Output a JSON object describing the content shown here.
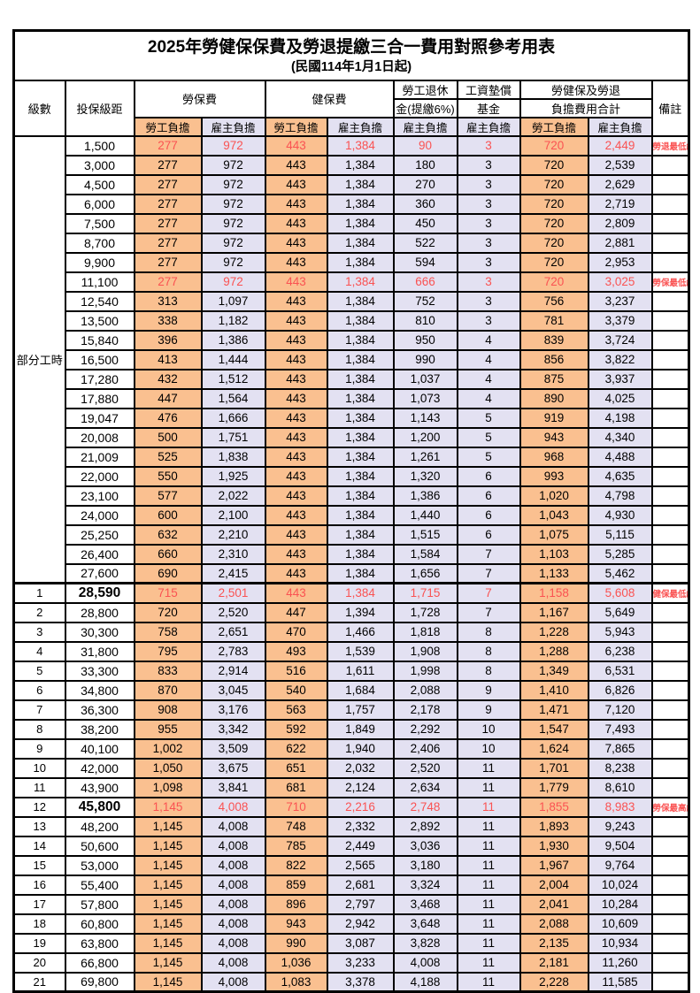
{
  "title": "2025年勞健保保費及勞退提繳三合一費用對照參考用表",
  "subtitle": "(民國114年1月1日起)",
  "colors": {
    "employee_bg": "#FAC090",
    "employer_bg": "#E3E1F2",
    "highlight_text": "#FA5252"
  },
  "header": {
    "level": "級數",
    "bracket": "投保級距",
    "labor_fee": "勞保費",
    "health_fee": "健保費",
    "pension_top": "勞工退休",
    "pension_bottom": "金(提繳6%)",
    "wage_fund_top": "工資墊償",
    "wage_fund_bottom": "基金",
    "total_top": "勞健保及勞退",
    "total_bottom": "負擔費用合計",
    "remark": "備註",
    "employee_share": "勞工負擔",
    "employer_share": "雇主負擔"
  },
  "table": {
    "rows": [
      {
        "lv": "部分工時",
        "span": 23,
        "br": "1,500",
        "v": [
          "277",
          "972",
          "443",
          "1,384",
          "90",
          "3",
          "720",
          "2,449"
        ],
        "rm": "勞退最低級距",
        "red": true
      },
      {
        "br": "3,000",
        "v": [
          "277",
          "972",
          "443",
          "1,384",
          "180",
          "3",
          "720",
          "2,539"
        ]
      },
      {
        "br": "4,500",
        "v": [
          "277",
          "972",
          "443",
          "1,384",
          "270",
          "3",
          "720",
          "2,629"
        ]
      },
      {
        "br": "6,000",
        "v": [
          "277",
          "972",
          "443",
          "1,384",
          "360",
          "3",
          "720",
          "2,719"
        ]
      },
      {
        "br": "7,500",
        "v": [
          "277",
          "972",
          "443",
          "1,384",
          "450",
          "3",
          "720",
          "2,809"
        ]
      },
      {
        "br": "8,700",
        "v": [
          "277",
          "972",
          "443",
          "1,384",
          "522",
          "3",
          "720",
          "2,881"
        ]
      },
      {
        "br": "9,900",
        "v": [
          "277",
          "972",
          "443",
          "1,384",
          "594",
          "3",
          "720",
          "2,953"
        ]
      },
      {
        "br": "11,100",
        "v": [
          "277",
          "972",
          "443",
          "1,384",
          "666",
          "3",
          "720",
          "3,025"
        ],
        "rm": "勞保最低級距",
        "red": true
      },
      {
        "br": "12,540",
        "v": [
          "313",
          "1,097",
          "443",
          "1,384",
          "752",
          "3",
          "756",
          "3,237"
        ]
      },
      {
        "br": "13,500",
        "v": [
          "338",
          "1,182",
          "443",
          "1,384",
          "810",
          "3",
          "781",
          "3,379"
        ]
      },
      {
        "br": "15,840",
        "v": [
          "396",
          "1,386",
          "443",
          "1,384",
          "950",
          "4",
          "839",
          "3,724"
        ]
      },
      {
        "br": "16,500",
        "v": [
          "413",
          "1,444",
          "443",
          "1,384",
          "990",
          "4",
          "856",
          "3,822"
        ]
      },
      {
        "br": "17,280",
        "v": [
          "432",
          "1,512",
          "443",
          "1,384",
          "1,037",
          "4",
          "875",
          "3,937"
        ]
      },
      {
        "br": "17,880",
        "v": [
          "447",
          "1,564",
          "443",
          "1,384",
          "1,073",
          "4",
          "890",
          "4,025"
        ]
      },
      {
        "br": "19,047",
        "v": [
          "476",
          "1,666",
          "443",
          "1,384",
          "1,143",
          "5",
          "919",
          "4,198"
        ]
      },
      {
        "br": "20,008",
        "v": [
          "500",
          "1,751",
          "443",
          "1,384",
          "1,200",
          "5",
          "943",
          "4,340"
        ]
      },
      {
        "br": "21,009",
        "v": [
          "525",
          "1,838",
          "443",
          "1,384",
          "1,261",
          "5",
          "968",
          "4,488"
        ]
      },
      {
        "br": "22,000",
        "v": [
          "550",
          "1,925",
          "443",
          "1,384",
          "1,320",
          "6",
          "993",
          "4,635"
        ]
      },
      {
        "br": "23,100",
        "v": [
          "577",
          "2,022",
          "443",
          "1,384",
          "1,386",
          "6",
          "1,020",
          "4,798"
        ]
      },
      {
        "br": "24,000",
        "v": [
          "600",
          "2,100",
          "443",
          "1,384",
          "1,440",
          "6",
          "1,043",
          "4,930"
        ]
      },
      {
        "br": "25,250",
        "v": [
          "632",
          "2,210",
          "443",
          "1,384",
          "1,515",
          "6",
          "1,075",
          "5,115"
        ]
      },
      {
        "br": "26,400",
        "v": [
          "660",
          "2,310",
          "443",
          "1,384",
          "1,584",
          "7",
          "1,103",
          "5,285"
        ]
      },
      {
        "br": "27,600",
        "v": [
          "690",
          "2,415",
          "443",
          "1,384",
          "1,656",
          "7",
          "1,133",
          "5,462"
        ]
      },
      {
        "lv": "1",
        "br": "28,590",
        "v": [
          "715",
          "2,501",
          "443",
          "1,384",
          "1,715",
          "7",
          "1,158",
          "5,608"
        ],
        "rm": "健保最低級距",
        "red": true,
        "bold": true,
        "thick": true
      },
      {
        "lv": "2",
        "br": "28,800",
        "v": [
          "720",
          "2,520",
          "447",
          "1,394",
          "1,728",
          "7",
          "1,167",
          "5,649"
        ]
      },
      {
        "lv": "3",
        "br": "30,300",
        "v": [
          "758",
          "2,651",
          "470",
          "1,466",
          "1,818",
          "8",
          "1,228",
          "5,943"
        ]
      },
      {
        "lv": "4",
        "br": "31,800",
        "v": [
          "795",
          "2,783",
          "493",
          "1,539",
          "1,908",
          "8",
          "1,288",
          "6,238"
        ]
      },
      {
        "lv": "5",
        "br": "33,300",
        "v": [
          "833",
          "2,914",
          "516",
          "1,611",
          "1,998",
          "8",
          "1,349",
          "6,531"
        ]
      },
      {
        "lv": "6",
        "br": "34,800",
        "v": [
          "870",
          "3,045",
          "540",
          "1,684",
          "2,088",
          "9",
          "1,410",
          "6,826"
        ]
      },
      {
        "lv": "7",
        "br": "36,300",
        "v": [
          "908",
          "3,176",
          "563",
          "1,757",
          "2,178",
          "9",
          "1,471",
          "7,120"
        ]
      },
      {
        "lv": "8",
        "br": "38,200",
        "v": [
          "955",
          "3,342",
          "592",
          "1,849",
          "2,292",
          "10",
          "1,547",
          "7,493"
        ]
      },
      {
        "lv": "9",
        "br": "40,100",
        "v": [
          "1,002",
          "3,509",
          "622",
          "1,940",
          "2,406",
          "10",
          "1,624",
          "7,865"
        ]
      },
      {
        "lv": "10",
        "br": "42,000",
        "v": [
          "1,050",
          "3,675",
          "651",
          "2,032",
          "2,520",
          "11",
          "1,701",
          "8,238"
        ]
      },
      {
        "lv": "11",
        "br": "43,900",
        "v": [
          "1,098",
          "3,841",
          "681",
          "2,124",
          "2,634",
          "11",
          "1,779",
          "8,610"
        ]
      },
      {
        "lv": "12",
        "br": "45,800",
        "v": [
          "1,145",
          "4,008",
          "710",
          "2,216",
          "2,748",
          "11",
          "1,855",
          "8,983"
        ],
        "rm": "勞保最高級距",
        "red": true,
        "bold": true
      },
      {
        "lv": "13",
        "br": "48,200",
        "v": [
          "1,145",
          "4,008",
          "748",
          "2,332",
          "2,892",
          "11",
          "1,893",
          "9,243"
        ]
      },
      {
        "lv": "14",
        "br": "50,600",
        "v": [
          "1,145",
          "4,008",
          "785",
          "2,449",
          "3,036",
          "11",
          "1,930",
          "9,504"
        ]
      },
      {
        "lv": "15",
        "br": "53,000",
        "v": [
          "1,145",
          "4,008",
          "822",
          "2,565",
          "3,180",
          "11",
          "1,967",
          "9,764"
        ]
      },
      {
        "lv": "16",
        "br": "55,400",
        "v": [
          "1,145",
          "4,008",
          "859",
          "2,681",
          "3,324",
          "11",
          "2,004",
          "10,024"
        ]
      },
      {
        "lv": "17",
        "br": "57,800",
        "v": [
          "1,145",
          "4,008",
          "896",
          "2,797",
          "3,468",
          "11",
          "2,041",
          "10,284"
        ]
      },
      {
        "lv": "18",
        "br": "60,800",
        "v": [
          "1,145",
          "4,008",
          "943",
          "2,942",
          "3,648",
          "11",
          "2,088",
          "10,609"
        ]
      },
      {
        "lv": "19",
        "br": "63,800",
        "v": [
          "1,145",
          "4,008",
          "990",
          "3,087",
          "3,828",
          "11",
          "2,135",
          "10,934"
        ]
      },
      {
        "lv": "20",
        "br": "66,800",
        "v": [
          "1,145",
          "4,008",
          "1,036",
          "3,233",
          "4,008",
          "11",
          "2,181",
          "11,260"
        ]
      },
      {
        "lv": "21",
        "br": "69,800",
        "v": [
          "1,145",
          "4,008",
          "1,083",
          "3,378",
          "4,188",
          "11",
          "2,228",
          "11,585"
        ]
      }
    ]
  }
}
